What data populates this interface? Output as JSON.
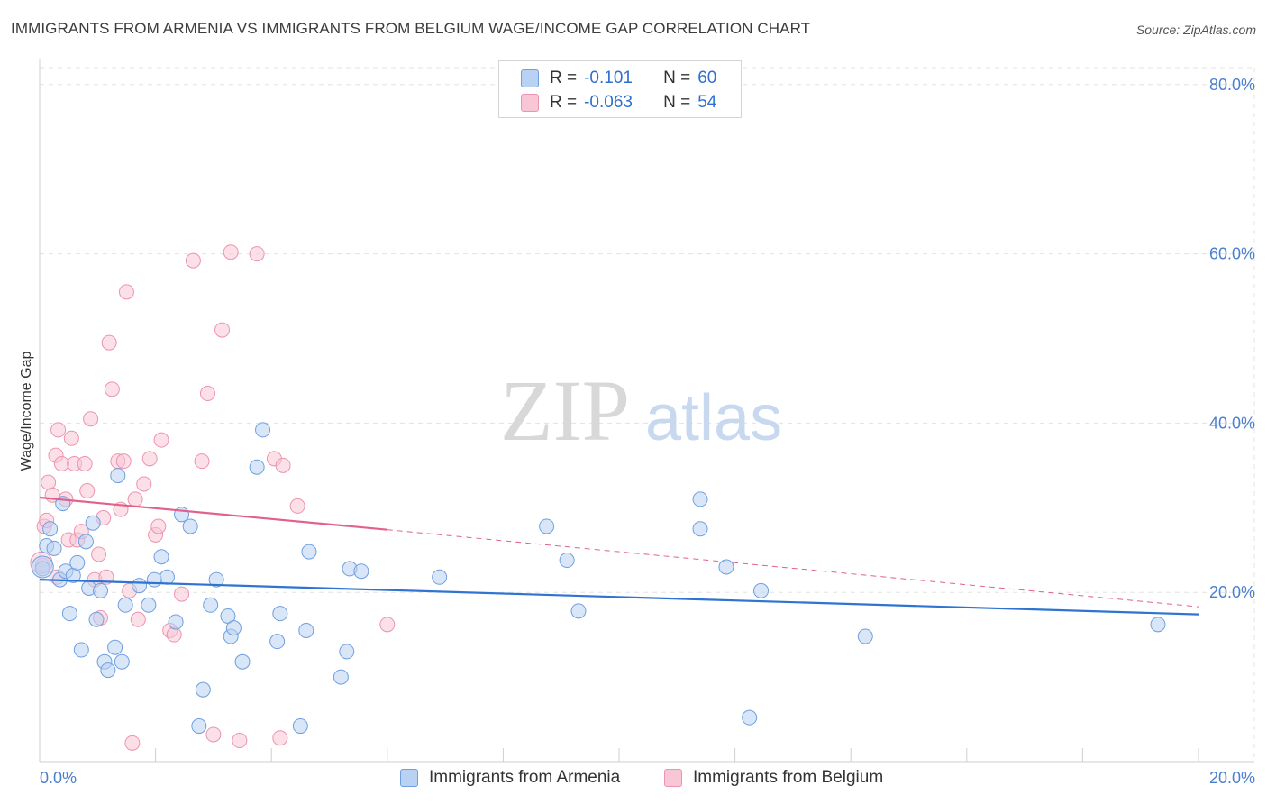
{
  "title": "IMMIGRANTS FROM ARMENIA VS IMMIGRANTS FROM BELGIUM WAGE/INCOME GAP CORRELATION CHART",
  "source": "Source: ZipAtlas.com",
  "watermark": {
    "zip": "ZIP",
    "atlas": "atlas"
  },
  "colors": {
    "armenia_fill": "#b9d2f3",
    "armenia_stroke": "#6f9fe0",
    "armenia_line": "#2e74d0",
    "belgium_fill": "#f8c6d5",
    "belgium_stroke": "#ec93b0",
    "belgium_line": "#e0628a"
  },
  "legend": {
    "armenia": {
      "r_label": "R =",
      "r_value": "-0.101",
      "n_label": "N =",
      "n_value": "60"
    },
    "belgium": {
      "r_label": "R =",
      "r_value": "-0.063",
      "n_label": "N =",
      "n_value": "54"
    }
  },
  "bottom_legend": {
    "armenia": "Immigrants from Armenia",
    "belgium": "Immigrants from Belgium"
  },
  "chart_data": {
    "type": "scatter",
    "title": "IMMIGRANTS FROM ARMENIA VS IMMIGRANTS FROM BELGIUM WAGE/INCOME GAP CORRELATION CHART",
    "xlabel": "",
    "ylabel": "Wage/Income Gap",
    "xlim": [
      0,
      20
    ],
    "ylim": [
      0,
      82
    ],
    "x_tick_labels": [
      "0.0%",
      "20.0%"
    ],
    "y_ticks": [
      20,
      40,
      60,
      80
    ],
    "y_tick_labels": [
      "20.0%",
      "40.0%",
      "60.0%",
      "80.0%"
    ],
    "grid": true,
    "series": [
      {
        "name": "Immigrants from Armenia",
        "points": [
          [
            0.05,
            22.8
          ],
          [
            0.12,
            25.5
          ],
          [
            0.18,
            27.5
          ],
          [
            0.25,
            25.2
          ],
          [
            0.35,
            21.5
          ],
          [
            0.4,
            30.5
          ],
          [
            0.45,
            22.5
          ],
          [
            0.52,
            17.5
          ],
          [
            0.58,
            22
          ],
          [
            0.65,
            23.5
          ],
          [
            0.72,
            13.2
          ],
          [
            0.8,
            26
          ],
          [
            0.85,
            20.5
          ],
          [
            0.92,
            28.2
          ],
          [
            0.98,
            16.8
          ],
          [
            1.05,
            20.2
          ],
          [
            1.12,
            11.8
          ],
          [
            1.18,
            10.8
          ],
          [
            1.3,
            13.5
          ],
          [
            1.35,
            33.8
          ],
          [
            1.42,
            11.8
          ],
          [
            1.48,
            18.5
          ],
          [
            1.72,
            20.8
          ],
          [
            1.88,
            18.5
          ],
          [
            1.98,
            21.5
          ],
          [
            2.1,
            24.2
          ],
          [
            2.2,
            21.8
          ],
          [
            2.35,
            16.5
          ],
          [
            2.45,
            29.2
          ],
          [
            2.6,
            27.8
          ],
          [
            2.75,
            4.2
          ],
          [
            2.82,
            8.5
          ],
          [
            2.95,
            18.5
          ],
          [
            3.05,
            21.5
          ],
          [
            3.25,
            17.2
          ],
          [
            3.3,
            14.8
          ],
          [
            3.35,
            15.8
          ],
          [
            3.5,
            11.8
          ],
          [
            3.75,
            34.8
          ],
          [
            3.85,
            39.2
          ],
          [
            4.1,
            14.2
          ],
          [
            4.15,
            17.5
          ],
          [
            4.5,
            4.2
          ],
          [
            4.6,
            15.5
          ],
          [
            4.65,
            24.8
          ],
          [
            5.2,
            10
          ],
          [
            5.3,
            13
          ],
          [
            5.35,
            22.8
          ],
          [
            5.55,
            22.5
          ],
          [
            6.9,
            21.8
          ],
          [
            8.75,
            27.8
          ],
          [
            9.1,
            23.8
          ],
          [
            9.3,
            17.8
          ],
          [
            11.4,
            31
          ],
          [
            11.4,
            27.5
          ],
          [
            11.85,
            23
          ],
          [
            12.25,
            5.2
          ],
          [
            12.45,
            20.2
          ],
          [
            14.25,
            14.8
          ],
          [
            19.3,
            16.2
          ]
        ],
        "trend": {
          "x": [
            0,
            20
          ],
          "y": [
            21.5,
            17.4
          ]
        }
      },
      {
        "name": "Immigrants from Belgium",
        "points": [
          [
            0.05,
            23.2
          ],
          [
            0.08,
            27.8
          ],
          [
            0.12,
            28.5
          ],
          [
            0.15,
            33
          ],
          [
            0.22,
            31.5
          ],
          [
            0.28,
            36.2
          ],
          [
            0.32,
            39.2
          ],
          [
            0.38,
            35.2
          ],
          [
            0.45,
            31
          ],
          [
            0.5,
            26.2
          ],
          [
            0.55,
            38.2
          ],
          [
            0.6,
            35.2
          ],
          [
            0.65,
            26.2
          ],
          [
            0.72,
            27.2
          ],
          [
            0.78,
            35.2
          ],
          [
            0.82,
            32
          ],
          [
            0.88,
            40.5
          ],
          [
            0.95,
            21.5
          ],
          [
            1.02,
            24.5
          ],
          [
            1.05,
            17
          ],
          [
            1.1,
            28.8
          ],
          [
            1.15,
            21.8
          ],
          [
            1.2,
            49.5
          ],
          [
            1.25,
            44
          ],
          [
            1.35,
            35.5
          ],
          [
            1.4,
            29.8
          ],
          [
            1.45,
            35.5
          ],
          [
            1.5,
            55.5
          ],
          [
            1.55,
            20.2
          ],
          [
            1.6,
            2.2
          ],
          [
            1.65,
            31
          ],
          [
            1.7,
            16.8
          ],
          [
            1.8,
            32.8
          ],
          [
            1.9,
            35.8
          ],
          [
            2.0,
            26.8
          ],
          [
            2.05,
            27.8
          ],
          [
            2.1,
            38
          ],
          [
            2.25,
            15.5
          ],
          [
            2.32,
            15
          ],
          [
            2.45,
            19.8
          ],
          [
            2.65,
            59.2
          ],
          [
            2.8,
            35.5
          ],
          [
            2.9,
            43.5
          ],
          [
            3.0,
            3.2
          ],
          [
            3.15,
            51
          ],
          [
            3.3,
            60.2
          ],
          [
            3.45,
            2.5
          ],
          [
            3.75,
            60
          ],
          [
            4.05,
            35.8
          ],
          [
            4.15,
            2.8
          ],
          [
            4.2,
            35
          ],
          [
            4.45,
            30.2
          ],
          [
            6.0,
            16.2
          ],
          [
            0.3,
            21.8
          ]
        ],
        "trend_solid": {
          "x": [
            0,
            6.0
          ],
          "y": [
            31.2,
            27.4
          ]
        },
        "trend_dashed": {
          "x": [
            6.0,
            20
          ],
          "y": [
            27.4,
            18.3
          ]
        }
      }
    ]
  }
}
